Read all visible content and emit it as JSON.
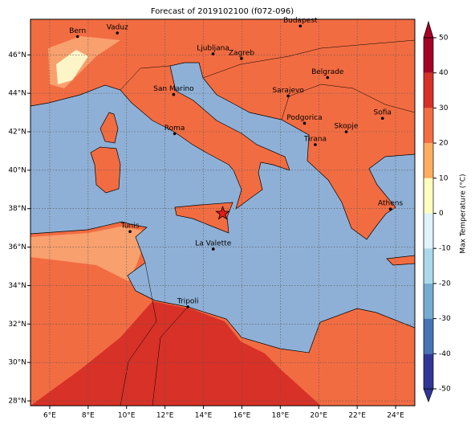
{
  "title": "Forecast of 2019102100 (f072-096)",
  "map": {
    "xlim": [
      5,
      25
    ],
    "ylim": [
      27.75,
      47.85
    ],
    "xticks": [
      {
        "value": 6,
        "label": "6°E"
      },
      {
        "value": 8,
        "label": "8°E"
      },
      {
        "value": 10,
        "label": "10°E"
      },
      {
        "value": 12,
        "label": "12°E"
      },
      {
        "value": 14,
        "label": "14°E"
      },
      {
        "value": 16,
        "label": "16°E"
      },
      {
        "value": 18,
        "label": "18°E"
      },
      {
        "value": 20,
        "label": "20°E"
      },
      {
        "value": 22,
        "label": "22°E"
      },
      {
        "value": 24,
        "label": "24°E"
      }
    ],
    "yticks": [
      {
        "value": 28,
        "label": "28°N"
      },
      {
        "value": 30,
        "label": "30°N"
      },
      {
        "value": 32,
        "label": "32°N"
      },
      {
        "value": 34,
        "label": "34°N"
      },
      {
        "value": 36,
        "label": "36°N"
      },
      {
        "value": 38,
        "label": "38°N"
      },
      {
        "value": 40,
        "label": "40°N"
      },
      {
        "value": 42,
        "label": "42°N"
      },
      {
        "value": 44,
        "label": "44°N"
      },
      {
        "value": 46,
        "label": "46°N"
      }
    ],
    "cities": [
      {
        "name": "Bern",
        "lon": 7.45,
        "lat": 46.95
      },
      {
        "name": "Vaduz",
        "lon": 9.52,
        "lat": 47.14
      },
      {
        "name": "Budapest",
        "lon": 19.04,
        "lat": 47.5
      },
      {
        "name": "Ljubljana",
        "lon": 14.5,
        "lat": 46.05
      },
      {
        "name": "Zagreb",
        "lon": 15.98,
        "lat": 45.81
      },
      {
        "name": "Belgrade",
        "lon": 20.46,
        "lat": 44.82
      },
      {
        "name": "Sarajevo",
        "lon": 18.41,
        "lat": 43.86
      },
      {
        "name": "San Marino",
        "lon": 12.45,
        "lat": 43.94
      },
      {
        "name": "Sofia",
        "lon": 23.32,
        "lat": 42.7
      },
      {
        "name": "Podgorica",
        "lon": 19.26,
        "lat": 42.44
      },
      {
        "name": "Skopje",
        "lon": 21.43,
        "lat": 42.0
      },
      {
        "name": "Roma",
        "lon": 12.5,
        "lat": 41.9
      },
      {
        "name": "Tirana",
        "lon": 19.82,
        "lat": 41.33
      },
      {
        "name": "Athens",
        "lon": 23.73,
        "lat": 37.98
      },
      {
        "name": "Tunis",
        "lon": 10.18,
        "lat": 36.81
      },
      {
        "name": "La Valette",
        "lon": 14.51,
        "lat": 35.9
      },
      {
        "name": "Tripoli",
        "lon": 13.19,
        "lat": 32.89
      }
    ],
    "marker": {
      "lon": 15.0,
      "lat": 37.75,
      "color": "#e41a1c"
    }
  },
  "colorbar": {
    "label": "Max Temperature (°C)",
    "ticks": [
      -50,
      -40,
      -30,
      -20,
      -10,
      0,
      10,
      20,
      30,
      40,
      50
    ],
    "colors": [
      "#313695",
      "#4575b4",
      "#74add1",
      "#abd9e9",
      "#e0f3f8",
      "#ffffbf",
      "#fdae61",
      "#f46d43",
      "#d73027",
      "#a50026"
    ]
  }
}
